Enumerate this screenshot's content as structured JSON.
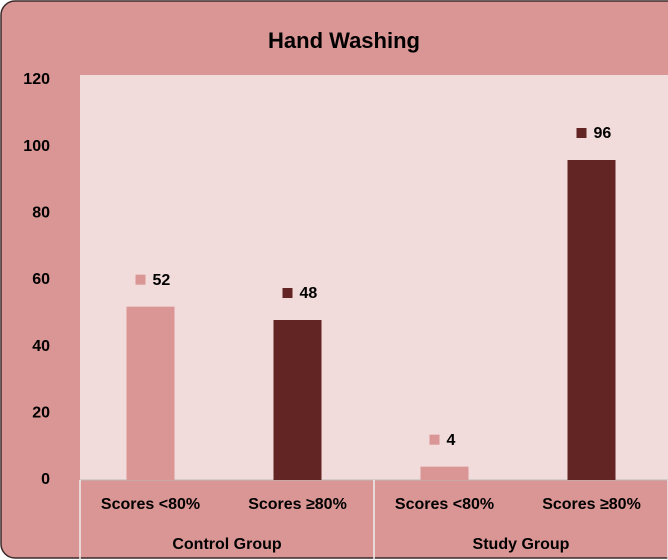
{
  "chart_data": {
    "type": "bar",
    "title": "Hand Washing",
    "groups": [
      "Control Group",
      "Study Group"
    ],
    "categories": [
      "Scores <80%",
      "Scores ≥80%",
      "Scores <80%",
      "Scores ≥80%"
    ],
    "values": [
      52,
      48,
      4,
      96
    ],
    "colors": [
      "#d99694",
      "#632523",
      "#d99694",
      "#632523"
    ],
    "ylim": [
      0,
      120
    ],
    "yticks": [
      0,
      20,
      40,
      60,
      80,
      100,
      120
    ],
    "grid": false
  }
}
